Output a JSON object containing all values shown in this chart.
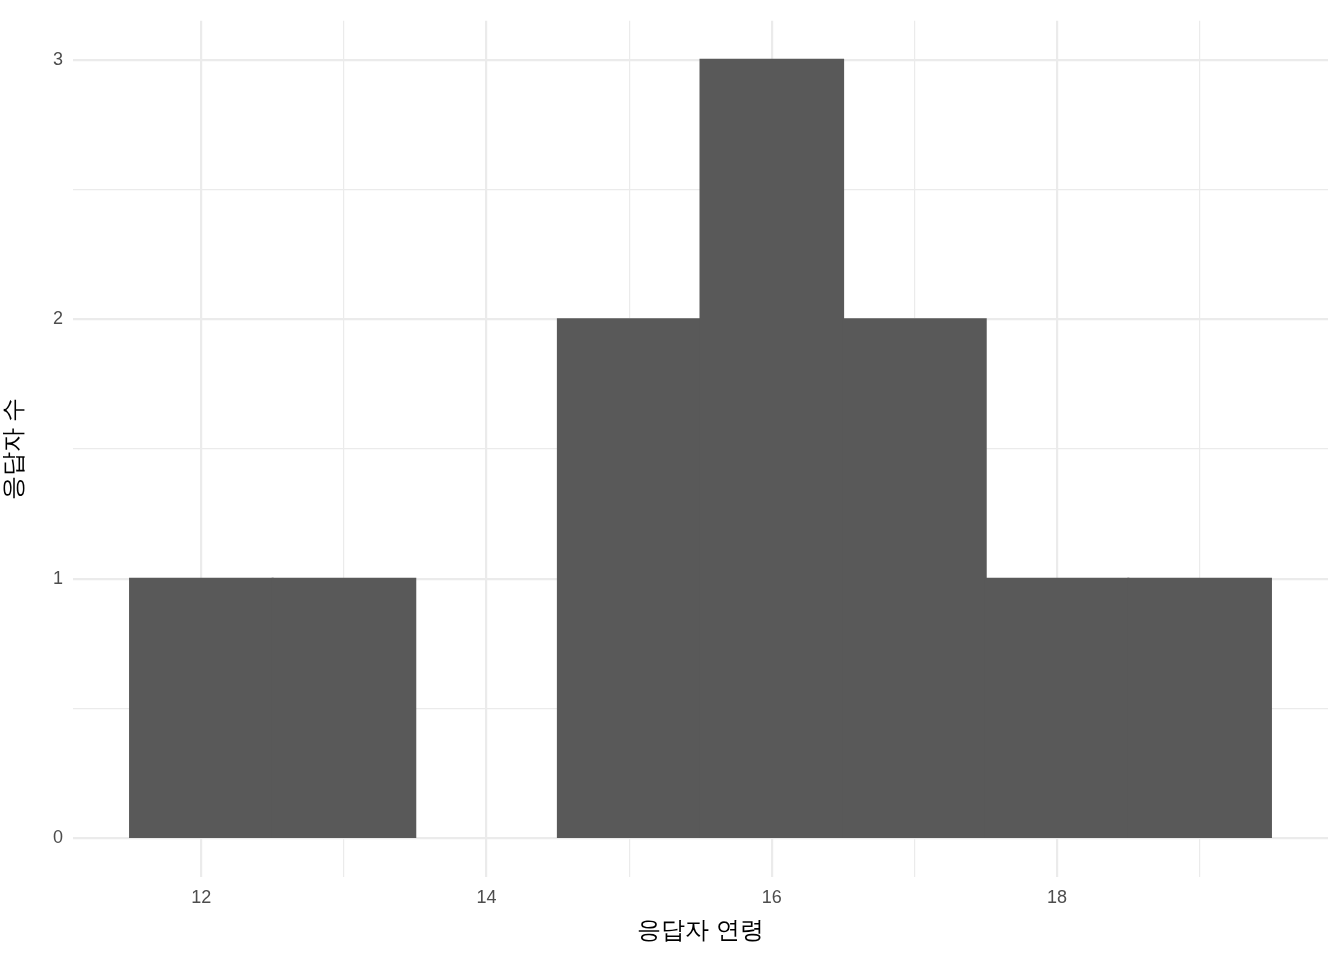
{
  "chart_data": {
    "type": "histogram",
    "xlabel": "응답자 연령",
    "ylabel": "응답자 수",
    "bins": [
      11.5,
      12.5,
      13.5,
      14.5,
      15.5,
      16.5,
      17.5,
      18.5,
      19.5
    ],
    "values": [
      1,
      1,
      0,
      2,
      3,
      2,
      1,
      1
    ],
    "color": "#595959",
    "xlim": [
      11.1,
      19.9
    ],
    "xticks": [
      12,
      {
        "value": 13,
        "label": null
      },
      14,
      {
        "value": 15,
        "label": null
      },
      16,
      {
        "value": 17,
        "label": null
      },
      18,
      {
        "value": 19,
        "label": null
      }
    ],
    "ylim": [
      -0.15,
      3.15
    ],
    "yticks": [
      0,
      {
        "value": 0.5,
        "label": null
      },
      1,
      {
        "value": 1.5,
        "label": null
      },
      2,
      {
        "value": 2.5,
        "label": null
      },
      3
    ],
    "grid": true,
    "legend": false
  }
}
